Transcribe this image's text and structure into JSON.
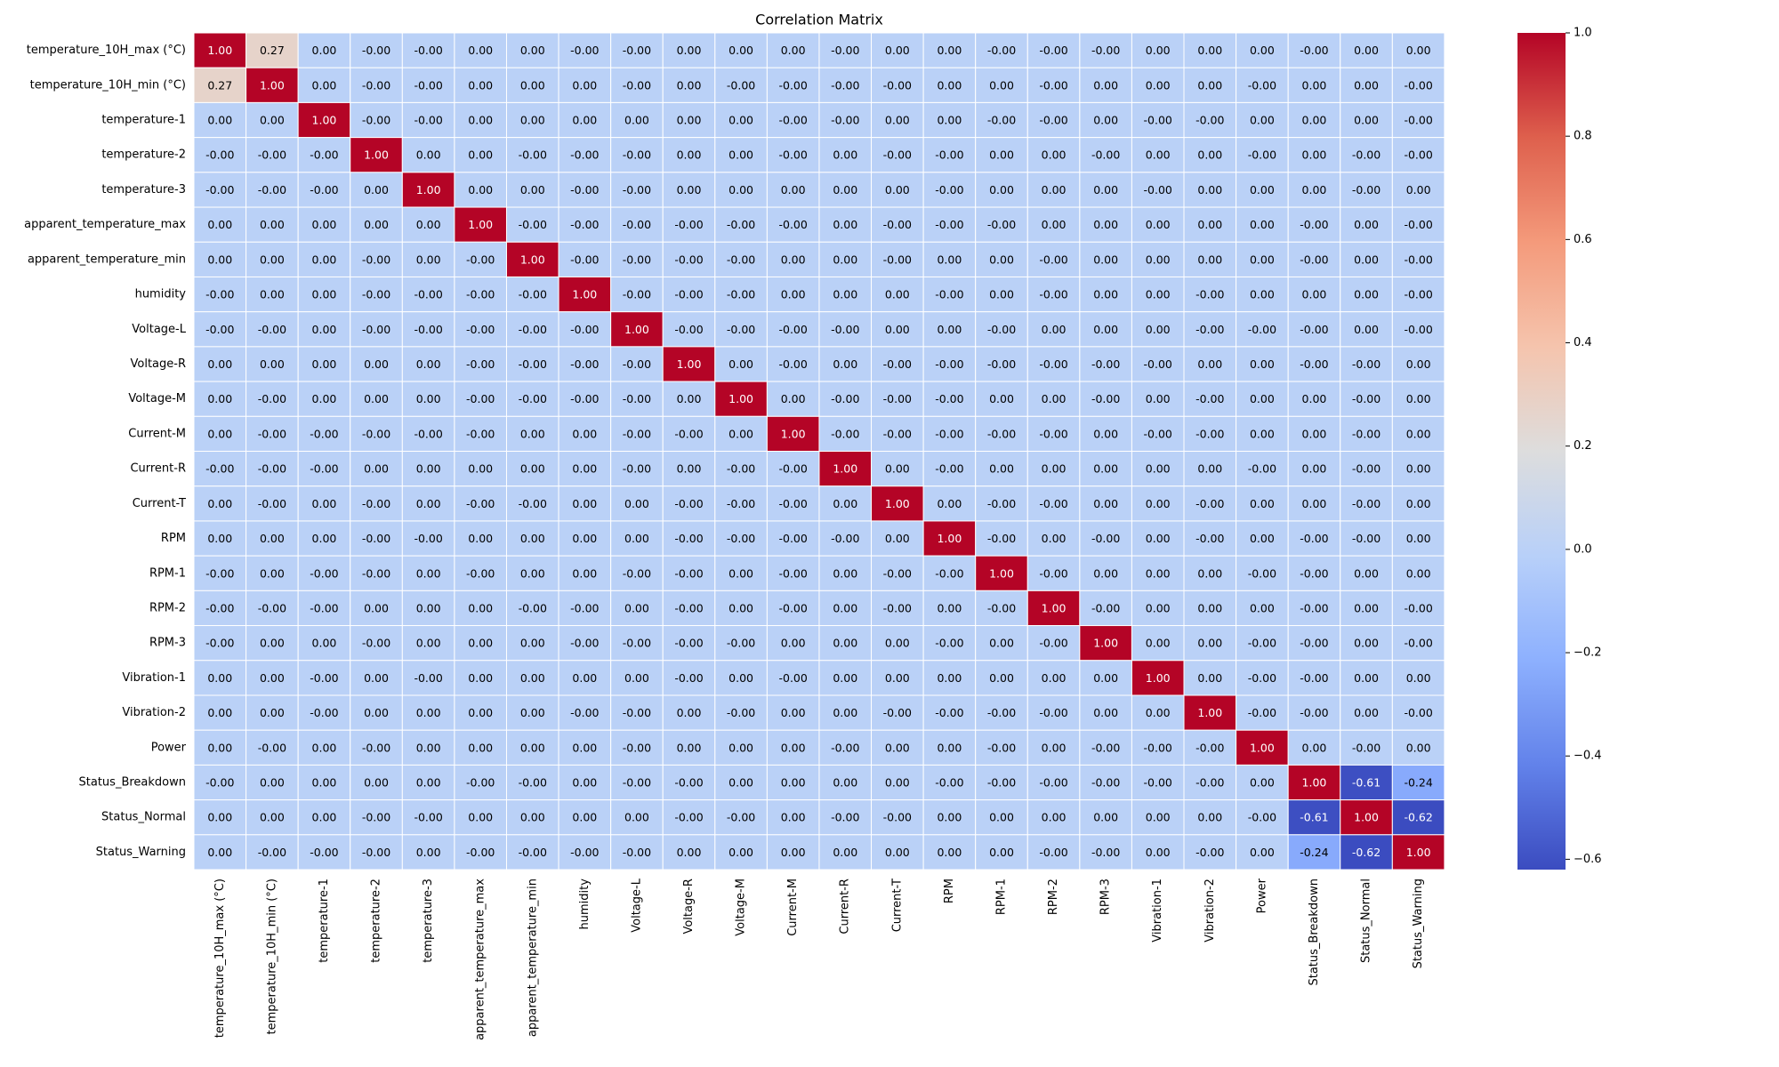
{
  "chart_data": {
    "type": "heatmap",
    "title": "Correlation Matrix",
    "colormap": "coolwarm",
    "vmin": -0.62,
    "vmax": 1.0,
    "annotation_format": "0.00",
    "colorbar_ticks": [
      "1.0",
      "0.8",
      "0.6",
      "0.4",
      "0.2",
      "0.0",
      "−0.2",
      "−0.4",
      "−0.6"
    ],
    "colorbar_tick_values": [
      1.0,
      0.8,
      0.6,
      0.4,
      0.2,
      0.0,
      -0.2,
      -0.4,
      -0.6
    ],
    "variables": [
      "temperature_10H_max (°C)",
      "temperature_10H_min (°C)",
      "temperature-1",
      "temperature-2",
      "temperature-3",
      "apparent_temperature_max",
      "apparent_temperature_min",
      "humidity",
      "Voltage-L",
      "Voltage-R",
      "Voltage-M",
      "Current-M",
      "Current-R",
      "Current-T",
      "RPM",
      "RPM-1",
      "RPM-2",
      "RPM-3",
      "Vibration-1",
      "Vibration-2",
      "Power",
      "Status_Breakdown",
      "Status_Normal",
      "Status_Warning"
    ],
    "matrix": [
      [
        "1.00",
        "0.27",
        "0.00",
        "-0.00",
        "-0.00",
        "0.00",
        "0.00",
        "-0.00",
        "-0.00",
        "0.00",
        "0.00",
        "0.00",
        "-0.00",
        "0.00",
        "0.00",
        "-0.00",
        "-0.00",
        "-0.00",
        "0.00",
        "0.00",
        "0.00",
        "-0.00",
        "0.00",
        "0.00"
      ],
      [
        "0.27",
        "1.00",
        "0.00",
        "-0.00",
        "-0.00",
        "0.00",
        "0.00",
        "0.00",
        "-0.00",
        "0.00",
        "-0.00",
        "-0.00",
        "-0.00",
        "-0.00",
        "0.00",
        "0.00",
        "-0.00",
        "0.00",
        "0.00",
        "0.00",
        "-0.00",
        "0.00",
        "0.00",
        "-0.00"
      ],
      [
        "0.00",
        "0.00",
        "1.00",
        "-0.00",
        "-0.00",
        "0.00",
        "0.00",
        "0.00",
        "0.00",
        "0.00",
        "0.00",
        "-0.00",
        "-0.00",
        "0.00",
        "0.00",
        "-0.00",
        "-0.00",
        "0.00",
        "-0.00",
        "-0.00",
        "0.00",
        "0.00",
        "0.00",
        "-0.00"
      ],
      [
        "-0.00",
        "-0.00",
        "-0.00",
        "1.00",
        "0.00",
        "0.00",
        "-0.00",
        "-0.00",
        "-0.00",
        "0.00",
        "0.00",
        "-0.00",
        "0.00",
        "-0.00",
        "-0.00",
        "0.00",
        "0.00",
        "-0.00",
        "0.00",
        "0.00",
        "-0.00",
        "0.00",
        "-0.00",
        "-0.00"
      ],
      [
        "-0.00",
        "-0.00",
        "-0.00",
        "0.00",
        "1.00",
        "0.00",
        "0.00",
        "-0.00",
        "-0.00",
        "0.00",
        "0.00",
        "0.00",
        "0.00",
        "0.00",
        "-0.00",
        "0.00",
        "0.00",
        "0.00",
        "-0.00",
        "0.00",
        "0.00",
        "0.00",
        "-0.00",
        "0.00"
      ],
      [
        "0.00",
        "0.00",
        "0.00",
        "0.00",
        "0.00",
        "1.00",
        "-0.00",
        "-0.00",
        "-0.00",
        "-0.00",
        "-0.00",
        "-0.00",
        "0.00",
        "-0.00",
        "-0.00",
        "-0.00",
        "0.00",
        "0.00",
        "0.00",
        "0.00",
        "0.00",
        "-0.00",
        "0.00",
        "-0.00"
      ],
      [
        "0.00",
        "0.00",
        "0.00",
        "-0.00",
        "0.00",
        "-0.00",
        "1.00",
        "-0.00",
        "-0.00",
        "-0.00",
        "-0.00",
        "0.00",
        "0.00",
        "-0.00",
        "0.00",
        "0.00",
        "-0.00",
        "0.00",
        "0.00",
        "0.00",
        "0.00",
        "-0.00",
        "0.00",
        "-0.00"
      ],
      [
        "-0.00",
        "0.00",
        "0.00",
        "-0.00",
        "-0.00",
        "-0.00",
        "-0.00",
        "1.00",
        "-0.00",
        "-0.00",
        "-0.00",
        "0.00",
        "0.00",
        "0.00",
        "-0.00",
        "0.00",
        "-0.00",
        "0.00",
        "0.00",
        "-0.00",
        "0.00",
        "0.00",
        "0.00",
        "-0.00"
      ],
      [
        "-0.00",
        "-0.00",
        "0.00",
        "-0.00",
        "-0.00",
        "-0.00",
        "-0.00",
        "-0.00",
        "1.00",
        "-0.00",
        "-0.00",
        "-0.00",
        "-0.00",
        "0.00",
        "0.00",
        "-0.00",
        "0.00",
        "0.00",
        "0.00",
        "-0.00",
        "-0.00",
        "-0.00",
        "0.00",
        "-0.00"
      ],
      [
        "0.00",
        "0.00",
        "0.00",
        "0.00",
        "0.00",
        "-0.00",
        "-0.00",
        "-0.00",
        "-0.00",
        "1.00",
        "0.00",
        "-0.00",
        "0.00",
        "-0.00",
        "-0.00",
        "-0.00",
        "-0.00",
        "-0.00",
        "-0.00",
        "0.00",
        "0.00",
        "-0.00",
        "-0.00",
        "0.00"
      ],
      [
        "0.00",
        "-0.00",
        "0.00",
        "0.00",
        "0.00",
        "-0.00",
        "-0.00",
        "-0.00",
        "-0.00",
        "0.00",
        "1.00",
        "0.00",
        "-0.00",
        "-0.00",
        "-0.00",
        "0.00",
        "0.00",
        "-0.00",
        "0.00",
        "-0.00",
        "0.00",
        "0.00",
        "-0.00",
        "0.00"
      ],
      [
        "0.00",
        "-0.00",
        "-0.00",
        "-0.00",
        "-0.00",
        "-0.00",
        "0.00",
        "0.00",
        "-0.00",
        "-0.00",
        "0.00",
        "1.00",
        "-0.00",
        "-0.00",
        "-0.00",
        "-0.00",
        "-0.00",
        "0.00",
        "-0.00",
        "-0.00",
        "0.00",
        "0.00",
        "-0.00",
        "0.00"
      ],
      [
        "-0.00",
        "-0.00",
        "-0.00",
        "0.00",
        "0.00",
        "0.00",
        "0.00",
        "0.00",
        "-0.00",
        "0.00",
        "-0.00",
        "-0.00",
        "1.00",
        "0.00",
        "-0.00",
        "0.00",
        "0.00",
        "0.00",
        "0.00",
        "0.00",
        "-0.00",
        "0.00",
        "-0.00",
        "0.00"
      ],
      [
        "0.00",
        "-0.00",
        "0.00",
        "-0.00",
        "0.00",
        "-0.00",
        "-0.00",
        "0.00",
        "0.00",
        "-0.00",
        "-0.00",
        "-0.00",
        "0.00",
        "1.00",
        "0.00",
        "-0.00",
        "-0.00",
        "0.00",
        "0.00",
        "-0.00",
        "0.00",
        "0.00",
        "-0.00",
        "0.00"
      ],
      [
        "0.00",
        "0.00",
        "0.00",
        "-0.00",
        "-0.00",
        "0.00",
        "0.00",
        "0.00",
        "0.00",
        "-0.00",
        "-0.00",
        "-0.00",
        "-0.00",
        "0.00",
        "1.00",
        "-0.00",
        "0.00",
        "-0.00",
        "0.00",
        "-0.00",
        "0.00",
        "-0.00",
        "-0.00",
        "0.00"
      ],
      [
        "-0.00",
        "0.00",
        "-0.00",
        "-0.00",
        "0.00",
        "-0.00",
        "0.00",
        "0.00",
        "-0.00",
        "-0.00",
        "0.00",
        "-0.00",
        "0.00",
        "-0.00",
        "-0.00",
        "1.00",
        "-0.00",
        "0.00",
        "0.00",
        "0.00",
        "-0.00",
        "-0.00",
        "0.00",
        "0.00"
      ],
      [
        "-0.00",
        "-0.00",
        "-0.00",
        "0.00",
        "0.00",
        "0.00",
        "-0.00",
        "-0.00",
        "0.00",
        "-0.00",
        "0.00",
        "-0.00",
        "0.00",
        "-0.00",
        "0.00",
        "-0.00",
        "1.00",
        "-0.00",
        "0.00",
        "0.00",
        "0.00",
        "-0.00",
        "0.00",
        "-0.00"
      ],
      [
        "-0.00",
        "0.00",
        "0.00",
        "-0.00",
        "0.00",
        "0.00",
        "0.00",
        "-0.00",
        "-0.00",
        "-0.00",
        "-0.00",
        "0.00",
        "0.00",
        "0.00",
        "-0.00",
        "0.00",
        "-0.00",
        "1.00",
        "0.00",
        "0.00",
        "-0.00",
        "-0.00",
        "0.00",
        "-0.00"
      ],
      [
        "0.00",
        "0.00",
        "-0.00",
        "0.00",
        "-0.00",
        "0.00",
        "0.00",
        "0.00",
        "0.00",
        "-0.00",
        "0.00",
        "-0.00",
        "0.00",
        "0.00",
        "0.00",
        "0.00",
        "0.00",
        "0.00",
        "1.00",
        "0.00",
        "-0.00",
        "-0.00",
        "0.00",
        "0.00"
      ],
      [
        "0.00",
        "0.00",
        "-0.00",
        "0.00",
        "0.00",
        "0.00",
        "0.00",
        "-0.00",
        "-0.00",
        "0.00",
        "-0.00",
        "0.00",
        "0.00",
        "-0.00",
        "-0.00",
        "-0.00",
        "-0.00",
        "0.00",
        "0.00",
        "1.00",
        "-0.00",
        "-0.00",
        "0.00",
        "-0.00"
      ],
      [
        "0.00",
        "-0.00",
        "0.00",
        "-0.00",
        "0.00",
        "0.00",
        "0.00",
        "0.00",
        "-0.00",
        "0.00",
        "0.00",
        "0.00",
        "-0.00",
        "0.00",
        "0.00",
        "-0.00",
        "0.00",
        "-0.00",
        "-0.00",
        "-0.00",
        "1.00",
        "0.00",
        "-0.00",
        "0.00"
      ],
      [
        "-0.00",
        "0.00",
        "0.00",
        "0.00",
        "0.00",
        "-0.00",
        "-0.00",
        "0.00",
        "-0.00",
        "-0.00",
        "0.00",
        "0.00",
        "0.00",
        "0.00",
        "-0.00",
        "-0.00",
        "-0.00",
        "-0.00",
        "-0.00",
        "-0.00",
        "0.00",
        "1.00",
        "-0.61",
        "-0.24"
      ],
      [
        "0.00",
        "0.00",
        "0.00",
        "-0.00",
        "-0.00",
        "0.00",
        "0.00",
        "0.00",
        "0.00",
        "-0.00",
        "-0.00",
        "0.00",
        "-0.00",
        "-0.00",
        "0.00",
        "0.00",
        "0.00",
        "0.00",
        "0.00",
        "0.00",
        "-0.00",
        "-0.61",
        "1.00",
        "-0.62"
      ],
      [
        "0.00",
        "-0.00",
        "-0.00",
        "-0.00",
        "0.00",
        "-0.00",
        "-0.00",
        "-0.00",
        "-0.00",
        "0.00",
        "0.00",
        "0.00",
        "0.00",
        "0.00",
        "0.00",
        "0.00",
        "-0.00",
        "-0.00",
        "0.00",
        "-0.00",
        "0.00",
        "-0.24",
        "-0.62",
        "1.00"
      ]
    ]
  }
}
